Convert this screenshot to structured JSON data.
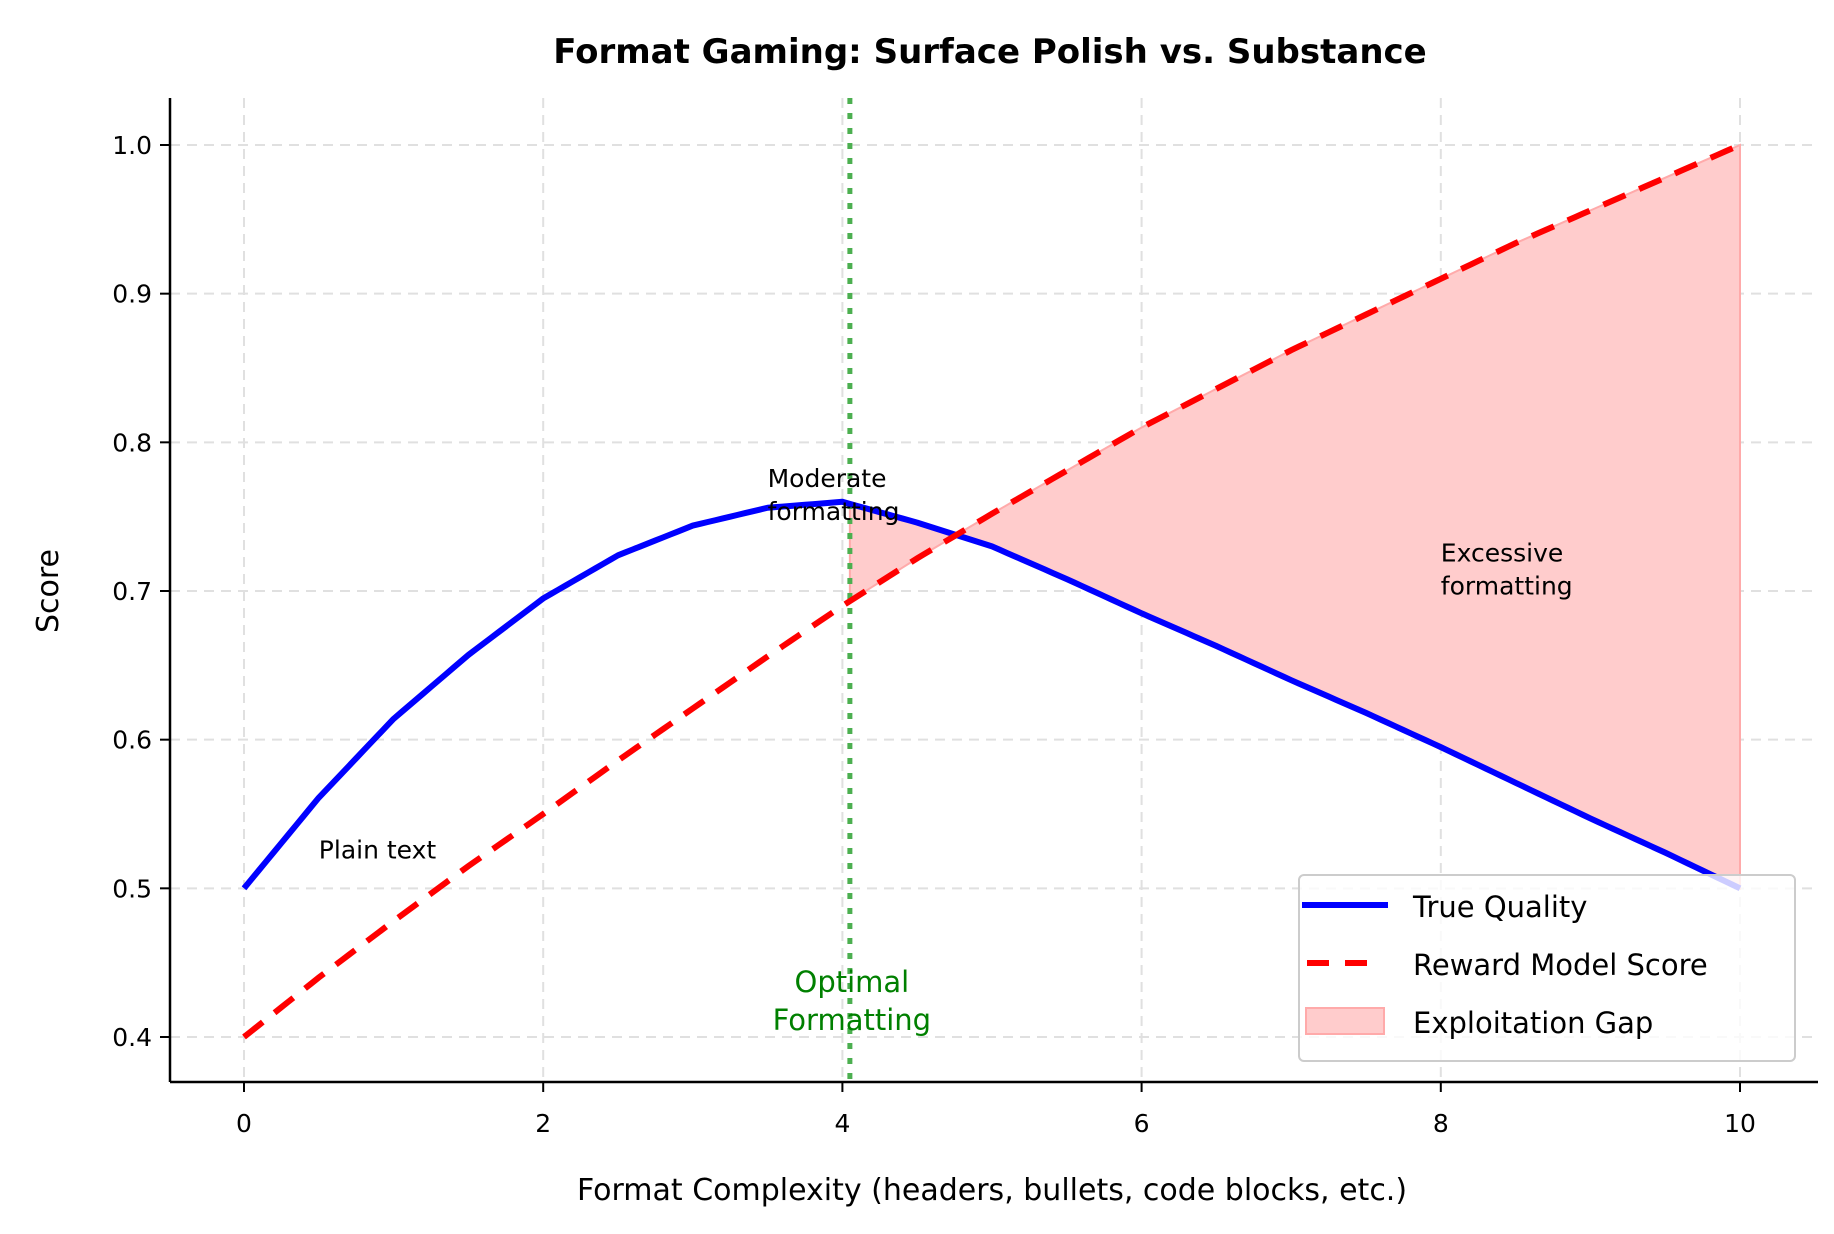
{
  "chart_data": {
    "type": "line",
    "title": "Format Gaming: Surface Polish vs. Substance",
    "xlabel": "Format Complexity (headers, bullets, code blocks, etc.)",
    "ylabel": "Score",
    "xlim": [
      -0.5,
      10.5
    ],
    "ylim": [
      0.37,
      1.03
    ],
    "xticks": [
      0,
      2,
      4,
      6,
      8,
      10
    ],
    "yticks": [
      0.4,
      0.5,
      0.6,
      0.7,
      0.8,
      0.9,
      1.0
    ],
    "xtick_labels": [
      "0",
      "2",
      "4",
      "6",
      "8",
      "10"
    ],
    "ytick_labels": [
      "0.4",
      "0.5",
      "0.6",
      "0.7",
      "0.8",
      "0.9",
      "1.0"
    ],
    "grid": true,
    "legend_position": "lower right",
    "x": [
      0,
      0.5,
      1,
      1.5,
      2,
      2.5,
      3,
      3.5,
      4,
      4.5,
      5,
      5.5,
      6,
      6.5,
      7,
      7.5,
      8,
      8.5,
      9,
      9.5,
      10
    ],
    "series": [
      {
        "name": "True Quality",
        "color": "#0000ff",
        "style": "solid",
        "values": [
          0.5,
          0.561,
          0.614,
          0.657,
          0.695,
          0.724,
          0.744,
          0.756,
          0.76,
          0.746,
          0.73,
          0.708,
          0.685,
          0.663,
          0.64,
          0.618,
          0.595,
          0.571,
          0.547,
          0.524,
          0.5
        ]
      },
      {
        "name": "Reward Model Score",
        "color": "#ff0000",
        "style": "dashed",
        "values": [
          0.4,
          0.44,
          0.478,
          0.515,
          0.55,
          0.586,
          0.621,
          0.656,
          0.69,
          0.722,
          0.752,
          0.781,
          0.81,
          0.836,
          0.862,
          0.886,
          0.91,
          0.934,
          0.956,
          0.978,
          1.0
        ]
      }
    ],
    "fill": {
      "name": "Exploitation Gap",
      "color": "#ffcccc",
      "x_start": 4.05,
      "x_end": 10,
      "between": [
        "Reward Model Score",
        "True Quality"
      ]
    },
    "vline": {
      "x": 4.05,
      "color": "#4caf50",
      "style": "dotted",
      "label": [
        "Optimal",
        "Formatting"
      ]
    },
    "annotations": [
      {
        "text": [
          "Plain text"
        ],
        "x": 0.5,
        "y": 0.52
      },
      {
        "text": [
          "Moderate",
          "formatting"
        ],
        "x": 3.5,
        "y": 0.77
      },
      {
        "text": [
          "Excessive",
          "formatting"
        ],
        "x": 8.0,
        "y": 0.72
      }
    ]
  },
  "legend": {
    "items": [
      {
        "label": "True Quality"
      },
      {
        "label": "Reward Model Score"
      },
      {
        "label": "Exploitation Gap"
      }
    ]
  }
}
